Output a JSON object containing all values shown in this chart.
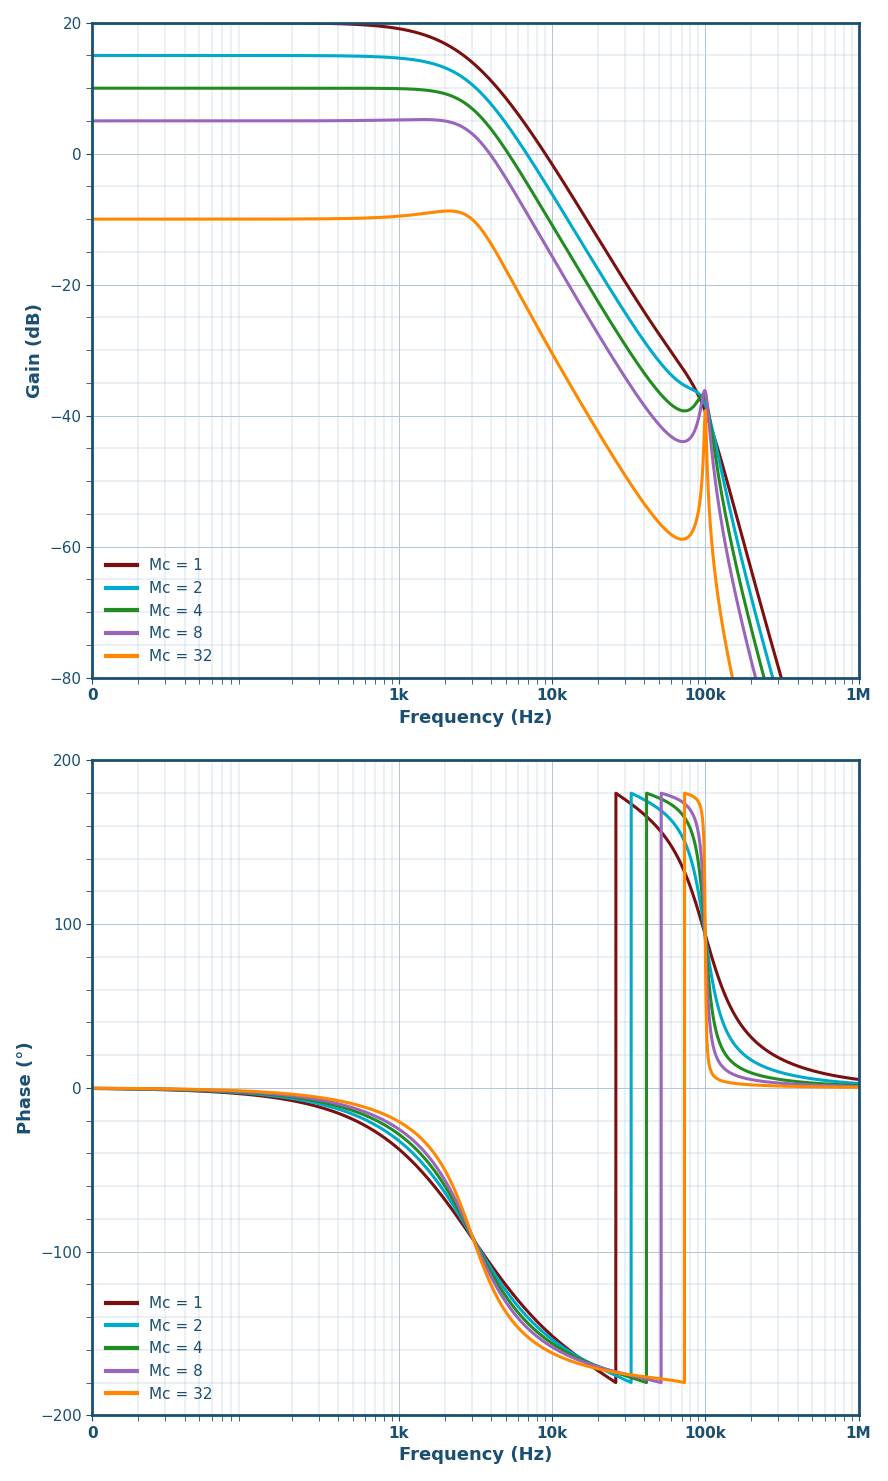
{
  "colors": {
    "Mc1": "#7B1010",
    "Mc2": "#00AACC",
    "Mc4": "#228B22",
    "Mc8": "#9966BB",
    "Mc32": "#FF8800"
  },
  "legend_labels": [
    "Mc = 1",
    "Mc = 2",
    "Mc = 4",
    "Mc = 8",
    "Mc = 32"
  ],
  "gain_ylim": [
    -80,
    20
  ],
  "gain_yticks": [
    -80,
    -60,
    -40,
    -20,
    0,
    20
  ],
  "phase_ylim": [
    -200,
    200
  ],
  "phase_yticks": [
    -200,
    -100,
    0,
    100,
    200
  ],
  "xlabel": "Frequency (Hz)",
  "gain_ylabel": "Gain (dB)",
  "phase_ylabel": "Phase (°)",
  "axis_color": "#1B4F72",
  "grid_color": "#B0C4D8",
  "label_color": "#1B4F72",
  "background_color": "#FFFFFF",
  "linewidth": 2.2
}
